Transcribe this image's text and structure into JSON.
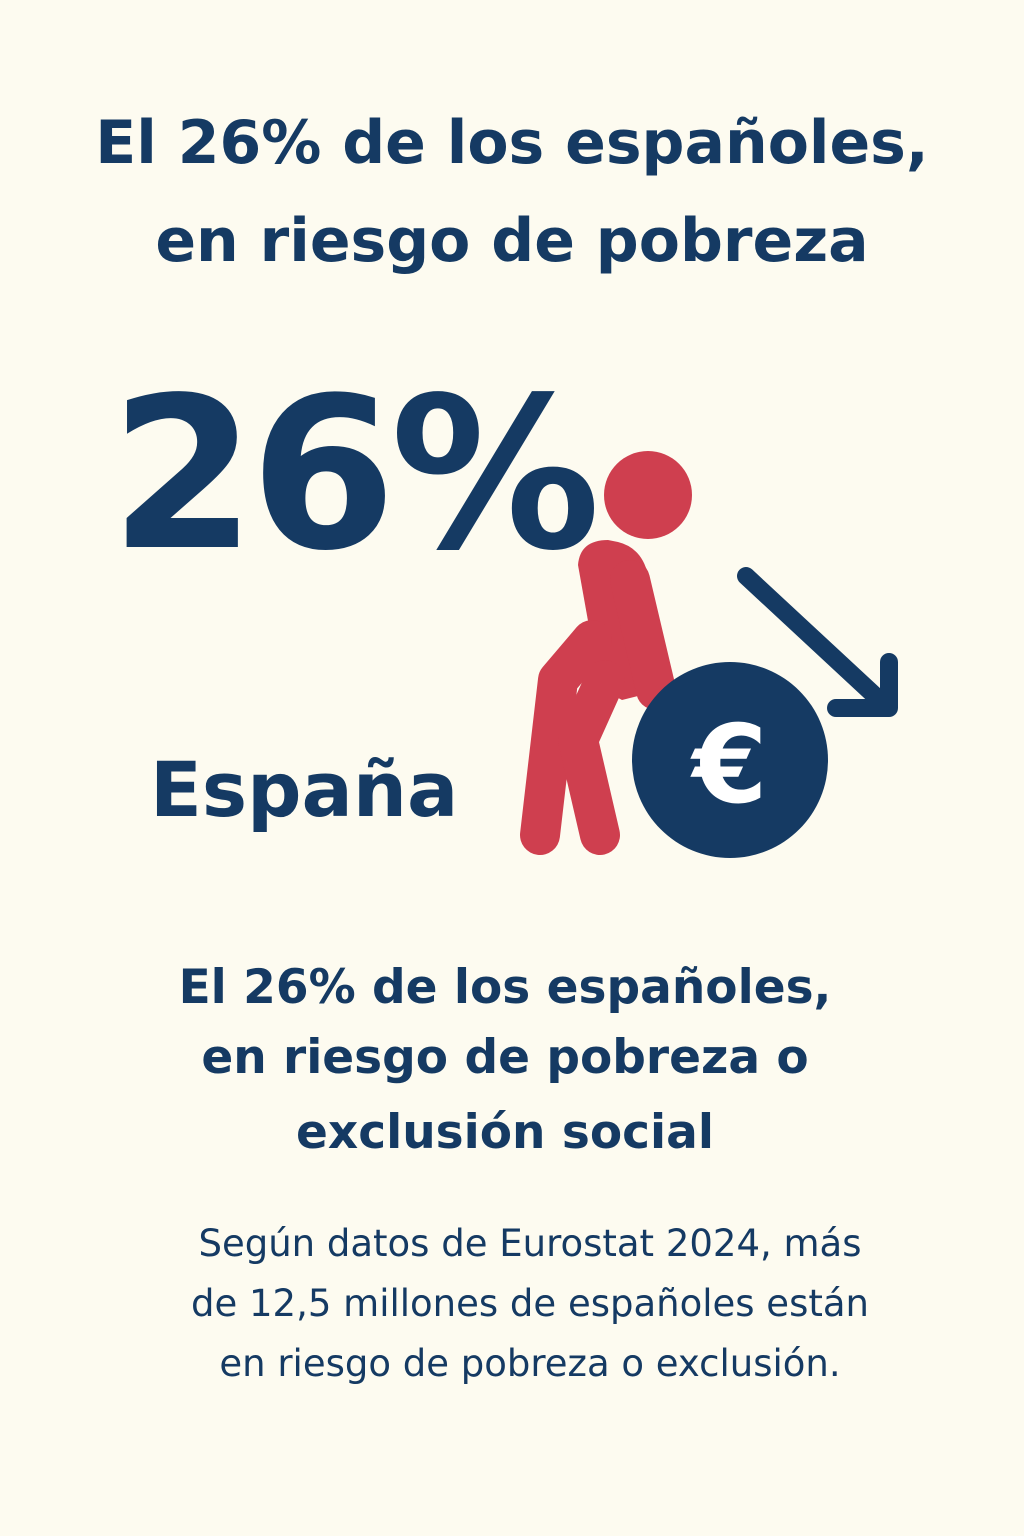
{
  "headline": {
    "line1": "El 26% de los españoles,",
    "line2": "en riesgo de pobreza"
  },
  "stat": {
    "value": "26%",
    "region": "España"
  },
  "icons": {
    "person": "stooped-person-icon",
    "coin": "euro-coin-icon",
    "arrow": "arrow-down-right-icon",
    "coin_symbol": "€"
  },
  "subheadline": {
    "line1": "El 26% de los españoles,",
    "line2": "en riesgo de pobreza o",
    "line3": "exclusión social"
  },
  "body": {
    "line1": "Según datos de Eurostat 2024, más",
    "line2": "de 12,5 millones de españoles están",
    "line3": "en riesgo de pobreza o exclusión."
  },
  "colors": {
    "background": "#fdfbf0",
    "navy": "#153a63",
    "red": "#cf3f4f"
  }
}
